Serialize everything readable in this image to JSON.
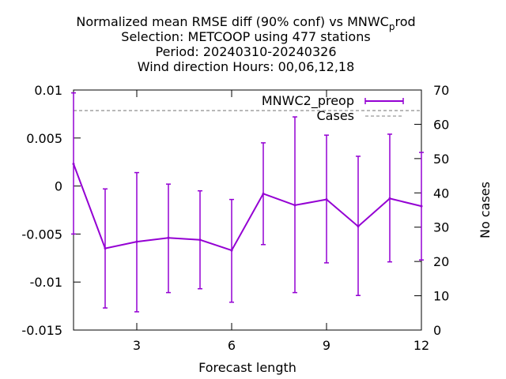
{
  "chart_data": {
    "type": "line",
    "title_lines": [
      "Normalized mean RMSE diff (90% conf) vs MNWC_prod",
      "Selection: METCOOP using   477 stations",
      "Period: 20240310-20240326",
      "Wind direction   Hours:  00,06,12,18"
    ],
    "xlabel": "Forecast length",
    "ylabel_right": "No cases",
    "xlim": [
      1,
      12
    ],
    "ylim": [
      -0.015,
      0.01
    ],
    "y2lim": [
      0,
      70
    ],
    "x_ticks": [
      3,
      6,
      9,
      12
    ],
    "y_ticks": [
      0.01,
      0.005,
      0,
      -0.005,
      -0.01,
      -0.015
    ],
    "y_tick_labels": [
      "0.01",
      "0.005",
      "0",
      "-0.005",
      "-0.01",
      "-0.015"
    ],
    "y2_ticks": [
      0,
      10,
      20,
      30,
      40,
      50,
      60,
      70
    ],
    "legend_position": "top-right",
    "series": [
      {
        "name": "MNWC2_preop",
        "color": "#9400d3",
        "x": [
          1,
          2,
          3,
          4,
          5,
          6,
          7,
          8,
          9,
          10,
          11,
          12
        ],
        "y": [
          0.0023,
          -0.0065,
          -0.0058,
          -0.0054,
          -0.0056,
          -0.0067,
          -0.0008,
          -0.002,
          -0.0014,
          -0.0042,
          -0.0013,
          -0.0021
        ],
        "err_low": [
          -0.005,
          -0.0127,
          -0.0131,
          -0.0111,
          -0.0107,
          -0.0121,
          -0.0061,
          -0.0111,
          -0.008,
          -0.0114,
          -0.0079,
          -0.0077
        ],
        "err_high": [
          0.0097,
          -0.0003,
          0.0014,
          0.0002,
          -0.0005,
          -0.0014,
          0.0045,
          0.0072,
          0.0053,
          0.0031,
          0.0054,
          0.0035
        ]
      },
      {
        "name": "Cases",
        "color": "#999999",
        "axis": "right",
        "x": [
          1,
          12
        ],
        "y": [
          64,
          64
        ]
      }
    ]
  }
}
